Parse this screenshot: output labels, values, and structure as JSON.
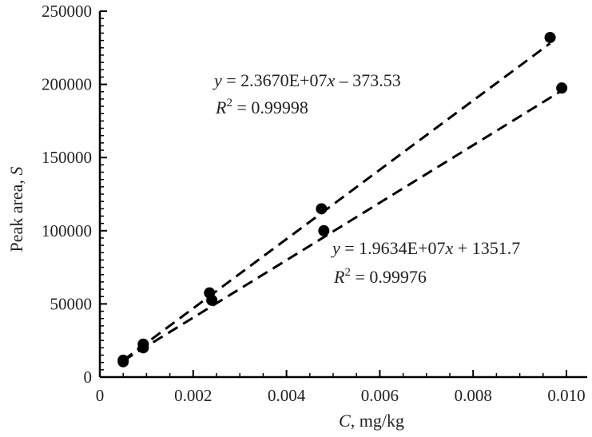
{
  "chart_data": {
    "type": "scatter",
    "xlabel_italic": "C",
    "xlabel_rest": ", mg/kg",
    "ylabel_main": "Peak area, ",
    "ylabel_italic": "S",
    "xlim": [
      0,
      0.0105
    ],
    "ylim": [
      0,
      250000
    ],
    "x_ticks": [
      0,
      0.002,
      0.004,
      0.006,
      0.008,
      0.01
    ],
    "x_tick_labels": [
      "0",
      "0.002",
      "0.004",
      "0.006",
      "0.008",
      "0.010"
    ],
    "y_ticks": [
      0,
      50000,
      100000,
      150000,
      200000,
      250000
    ],
    "y_tick_labels": [
      "0",
      "50000",
      "100000",
      "150000",
      "200000",
      "250000"
    ],
    "grid": false,
    "series": [
      {
        "points": [
          [
            0.0005,
            11500
          ],
          [
            0.00093,
            22500
          ],
          [
            0.00235,
            57500
          ],
          [
            0.00475,
            115000
          ],
          [
            0.00965,
            232000
          ]
        ],
        "fit": {
          "slope": 23670000,
          "intercept": -373.53
        },
        "equation": {
          "y_var": "y",
          "eq_text": " = 2.3670E+07",
          "x_var": "x",
          "eq_tail": " – 373.53",
          "r_var": "R",
          "r_sup": "2",
          "r_val": " = 0.99998"
        }
      },
      {
        "points": [
          [
            0.0005,
            10500
          ],
          [
            0.00093,
            20000
          ],
          [
            0.0024,
            52500
          ],
          [
            0.0048,
            100000
          ],
          [
            0.0099,
            197500
          ]
        ],
        "fit": {
          "slope": 19634000,
          "intercept": 1351.7
        },
        "equation": {
          "y_var": "y",
          "eq_text": " = 1.9634E+07",
          "x_var": "x",
          "eq_tail": " + 1351.7",
          "r_var": "R",
          "r_sup": "2",
          "r_val": " = 0.99976"
        }
      }
    ]
  }
}
